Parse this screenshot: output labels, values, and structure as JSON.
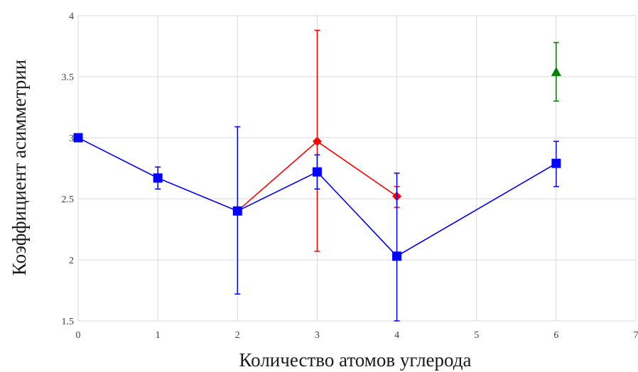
{
  "chart_data": {
    "type": "scatter",
    "title": "",
    "xlabel": "Количество атомов углерода",
    "ylabel": "Коэффициент асимметрии",
    "xlim": [
      0,
      7
    ],
    "ylim": [
      1.5,
      4
    ],
    "x_ticks": [
      0,
      1,
      2,
      3,
      4,
      5,
      6,
      7
    ],
    "y_ticks": [
      1.5,
      2,
      2.5,
      3,
      3.5,
      4
    ],
    "y_tick_labels": [
      "1.5",
      "2",
      "2.5",
      "3",
      "3.5",
      "4"
    ],
    "grid": true,
    "series": [
      {
        "color": "#ff0000",
        "marker": "diamond",
        "line": true,
        "points": [
          {
            "x": 2,
            "y": 2.4,
            "err_low": null,
            "err_high": null
          },
          {
            "x": 3,
            "y": 2.97,
            "err_low": 2.07,
            "err_high": 3.88
          },
          {
            "x": 4,
            "y": 2.52,
            "err_low": 2.43,
            "err_high": 2.6
          }
        ]
      },
      {
        "color": "#0000ff",
        "marker": "square",
        "line": true,
        "points": [
          {
            "x": 0,
            "y": 3.0,
            "err_low": null,
            "err_high": null
          },
          {
            "x": 1,
            "y": 2.67,
            "err_low": 2.58,
            "err_high": 2.76
          },
          {
            "x": 2,
            "y": 2.4,
            "err_low": 1.72,
            "err_high": 3.09
          },
          {
            "x": 3,
            "y": 2.72,
            "err_low": 2.58,
            "err_high": 2.86
          },
          {
            "x": 4,
            "y": 2.03,
            "err_low": 1.5,
            "err_high": 2.71
          },
          {
            "x": 6,
            "y": 2.79,
            "err_low": 2.6,
            "err_high": 2.97
          }
        ]
      },
      {
        "color": "#008000",
        "marker": "triangle",
        "line": false,
        "points": [
          {
            "x": 6,
            "y": 3.54,
            "err_low": 3.3,
            "err_high": 3.78
          }
        ]
      }
    ]
  }
}
